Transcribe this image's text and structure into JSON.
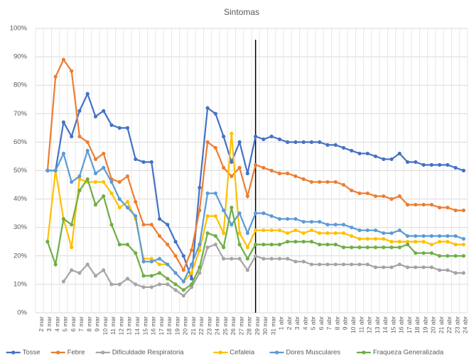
{
  "chart_data": {
    "type": "line",
    "title": "Sintomas",
    "categories": [
      "2 mar",
      "3 mar",
      "4 mar",
      "5 mar",
      "6 mar",
      "7 mar",
      "8 mar",
      "9 mar",
      "10 mar",
      "11 mar",
      "12 mar",
      "13 mar",
      "14 mar",
      "15 mar",
      "16 mar",
      "17 mar",
      "18 mar",
      "19 mar",
      "20 mar",
      "21 mar",
      "22 mar",
      "23 mar",
      "24 mar",
      "25 mar",
      "26 mar",
      "27 mar",
      "28 mar",
      "29 mar",
      "30 mar",
      "31 mar",
      "1 abr",
      "2 abr",
      "3 abr",
      "4 abr",
      "5 abr",
      "6 abr",
      "7 abr",
      "8 abr",
      "9 abr",
      "10 abr",
      "11 abr",
      "12 abr",
      "13 abr",
      "14 abr",
      "15 abr",
      "16 abr",
      "17 abr",
      "18 abr",
      "19 abr",
      "20 abr",
      "21 abr",
      "22 abr",
      "23 abr",
      "24 abr"
    ],
    "series": [
      {
        "name": "Tosse",
        "color": "#4472c4",
        "values": [
          null,
          50,
          50,
          67,
          62,
          71,
          77,
          69,
          71,
          66,
          65,
          65,
          54,
          53,
          53,
          33,
          31,
          25,
          20,
          12,
          44,
          72,
          70,
          62,
          53,
          60,
          49,
          62,
          61,
          62,
          61,
          60,
          60,
          60,
          60,
          60,
          59,
          59,
          58,
          57,
          56,
          56,
          55,
          54,
          54,
          56,
          53,
          53,
          52,
          52,
          52,
          52,
          51,
          50
        ]
      },
      {
        "name": "Febre",
        "color": "#ed7d31",
        "values": [
          null,
          50,
          83,
          89,
          85,
          62,
          60,
          54,
          56,
          47,
          46,
          48,
          39,
          31,
          31,
          27,
          24,
          20,
          15,
          22,
          36,
          60,
          58,
          51,
          48,
          51,
          41,
          52,
          51,
          50,
          49,
          49,
          48,
          47,
          46,
          46,
          46,
          46,
          45,
          43,
          42,
          42,
          41,
          41,
          40,
          41,
          38,
          38,
          38,
          38,
          37,
          37,
          36,
          36
        ]
      },
      {
        "name": "Dificuldade Respiratoria",
        "color": "#a5a5a5",
        "values": [
          null,
          null,
          null,
          11,
          15,
          14,
          17,
          13,
          15,
          10,
          10,
          12,
          10,
          9,
          9,
          10,
          10,
          8,
          6,
          9,
          14,
          23,
          24,
          19,
          19,
          19,
          15,
          20,
          19,
          19,
          19,
          19,
          18,
          18,
          17,
          17,
          17,
          17,
          17,
          17,
          17,
          17,
          16,
          16,
          16,
          17,
          16,
          16,
          16,
          16,
          15,
          15,
          14,
          14
        ]
      },
      {
        "name": "Cefaleia",
        "color": "#ffc000",
        "values": [
          null,
          25,
          50,
          33,
          23,
          47,
          46,
          46,
          46,
          42,
          37,
          39,
          33,
          19,
          19,
          17,
          17,
          14,
          11,
          14,
          22,
          34,
          34,
          28,
          63,
          28,
          23,
          29,
          29,
          29,
          29,
          28,
          29,
          28,
          29,
          28,
          28,
          28,
          28,
          27,
          26,
          26,
          26,
          26,
          25,
          25,
          25,
          25,
          25,
          24,
          25,
          25,
          24,
          24
        ]
      },
      {
        "name": "Dores Musculares",
        "color": "#5b9bd5",
        "values": [
          null,
          50,
          50,
          56,
          46,
          48,
          57,
          49,
          51,
          46,
          40,
          37,
          34,
          18,
          18,
          19,
          17,
          14,
          11,
          17,
          24,
          42,
          42,
          36,
          31,
          35,
          28,
          35,
          35,
          34,
          33,
          33,
          33,
          32,
          32,
          32,
          31,
          31,
          31,
          30,
          29,
          29,
          29,
          28,
          28,
          29,
          27,
          27,
          27,
          27,
          27,
          27,
          27,
          26
        ]
      },
      {
        "name": "Fraqueza Generalizada",
        "color": "#70ad47",
        "values": [
          null,
          25,
          17,
          33,
          31,
          43,
          47,
          38,
          41,
          31,
          24,
          24,
          21,
          13,
          13,
          14,
          12,
          10,
          8,
          10,
          16,
          28,
          27,
          23,
          37,
          24,
          19,
          24,
          24,
          24,
          24,
          25,
          25,
          25,
          25,
          24,
          24,
          24,
          23,
          23,
          23,
          23,
          23,
          23,
          23,
          23,
          24,
          21,
          21,
          21,
          20,
          20,
          20,
          20
        ]
      }
    ],
    "ylim": [
      0,
      100
    ],
    "yticks": [
      {
        "value": 0,
        "label": "0%"
      },
      {
        "value": 10,
        "label": "10%"
      },
      {
        "value": 20,
        "label": "20%"
      },
      {
        "value": 30,
        "label": "30%"
      },
      {
        "value": 40,
        "label": "40%"
      },
      {
        "value": 50,
        "label": "50%"
      },
      {
        "value": 60,
        "label": "60%"
      },
      {
        "value": 70,
        "label": "70%"
      },
      {
        "value": 80,
        "label": "80%"
      },
      {
        "value": 90,
        "label": "90%"
      },
      {
        "value": 100,
        "label": "100%"
      }
    ],
    "grid": true,
    "legend": "bottom",
    "vline": "29 mar"
  }
}
